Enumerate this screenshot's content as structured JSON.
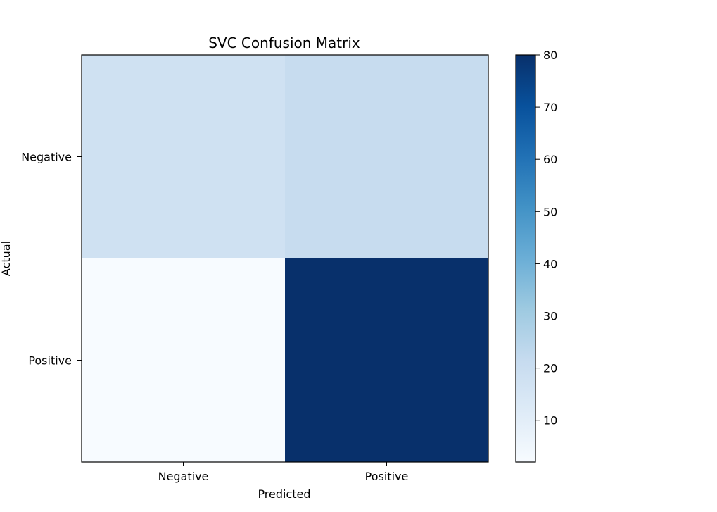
{
  "chart_data": {
    "type": "heatmap",
    "title": "SVC Confusion Matrix",
    "xlabel": "Predicted",
    "ylabel": "Actual",
    "x_categories": [
      "Negative",
      "Positive"
    ],
    "y_categories": [
      "Negative",
      "Positive"
    ],
    "values": [
      [
        18,
        21
      ],
      [
        2,
        80
      ]
    ],
    "colormap": "Blues",
    "colorbar": {
      "range": [
        2,
        80
      ],
      "ticks": [
        10,
        20,
        30,
        40,
        50,
        60,
        70,
        80
      ]
    },
    "grid": false
  }
}
